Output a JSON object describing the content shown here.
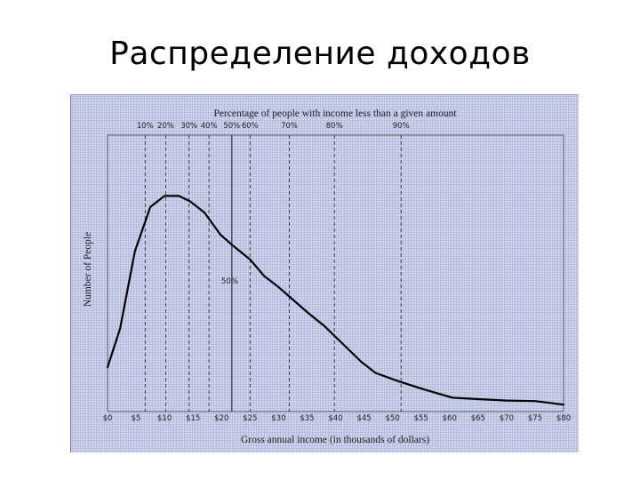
{
  "slide": {
    "title": "Распределение доходов"
  },
  "chart_data": {
    "type": "line",
    "title": "Percentage of people with income less than a given amount",
    "xlabel": "Gross annual income (in thousands of dollars)",
    "ylabel": "Number of People",
    "x_unit": "thousands of dollars",
    "xlim": [
      0,
      80
    ],
    "x_ticks": [
      0,
      5,
      10,
      15,
      20,
      25,
      30,
      35,
      40,
      45,
      50,
      55,
      60,
      65,
      70,
      75,
      80
    ],
    "x_tick_labels": [
      "$0",
      "$5",
      "$10",
      "$15",
      "$20",
      "$25",
      "$30",
      "$35",
      "$40",
      "$45",
      "$50",
      "$55",
      "$60",
      "$65",
      "$70",
      "$75",
      "$80"
    ],
    "y_ticks_shown": false,
    "y_scale_max": 100,
    "grid": false,
    "legend": "none",
    "series": [
      {
        "points": [
          [
            0,
            16
          ],
          [
            2.2,
            30
          ],
          [
            4.8,
            58
          ],
          [
            7.5,
            74
          ],
          [
            10,
            78
          ],
          [
            12.5,
            78
          ],
          [
            14.5,
            76
          ],
          [
            17,
            72
          ],
          [
            19.8,
            64
          ],
          [
            22,
            60
          ],
          [
            25,
            55
          ],
          [
            27.5,
            49
          ],
          [
            30,
            45
          ],
          [
            32.5,
            40.5
          ],
          [
            35,
            36
          ],
          [
            38,
            31
          ],
          [
            40,
            27
          ],
          [
            44.5,
            18
          ],
          [
            47,
            14
          ],
          [
            51,
            11
          ],
          [
            55.5,
            8
          ],
          [
            60.5,
            5
          ],
          [
            65,
            4.5
          ],
          [
            70,
            4
          ],
          [
            75,
            3.8
          ],
          [
            80,
            2.5
          ]
        ]
      }
    ],
    "percentile_markers": [
      {
        "label": "10%",
        "x": 6.6
      },
      {
        "label": "20%",
        "x": 10.2
      },
      {
        "label": "30%",
        "x": 14.3
      },
      {
        "label": "40%",
        "x": 17.8
      },
      {
        "label": "50%",
        "x": 21.8
      },
      {
        "label": "60%",
        "x": 25
      },
      {
        "label": "70%",
        "x": 31.9
      },
      {
        "label": "80%",
        "x": 39.8
      },
      {
        "label": "90%",
        "x": 51.5
      }
    ],
    "annotation": "50%",
    "colors": {
      "line": "#000000",
      "background": "#cdd3ea"
    }
  }
}
